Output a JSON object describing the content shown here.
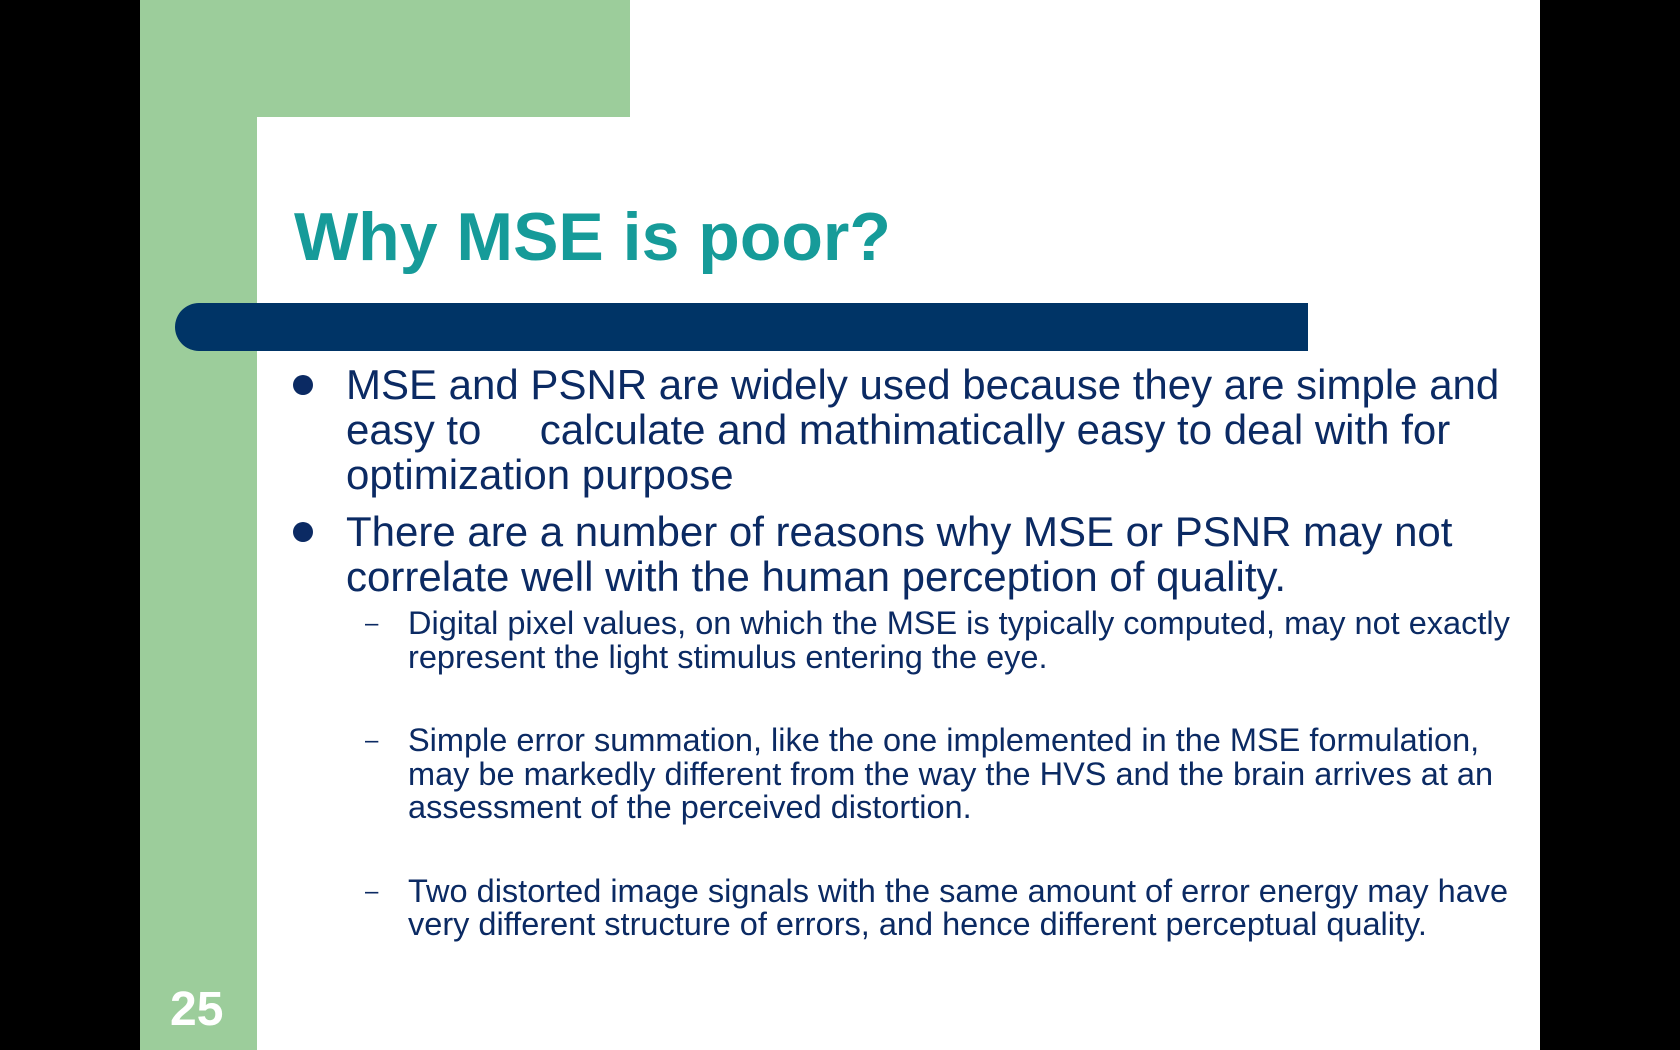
{
  "slide": {
    "title": "Why MSE is poor?",
    "number": "25",
    "colors": {
      "background": "#ffffff",
      "accent_green": "#9ccd9b",
      "title": "#169b99",
      "bar": "#003466",
      "body_text": "#0b2a63"
    },
    "bullets": [
      {
        "text": "MSE and PSNR are widely used because they are simple and easy to     calculate and mathimatically easy to deal with for optimization purpose",
        "subitems": []
      },
      {
        "text": "There are a number of reasons why MSE or PSNR may not correlate well with the human perception of quality.",
        "subitems": [
          "Digital pixel values, on which the MSE is typically computed, may not exactly represent the light stimulus entering the eye.",
          "Simple error summation, like the one implemented in the MSE formulation, may be markedly different from the way the HVS and the brain arrives at an assessment of the perceived distortion.",
          "Two distorted image signals with the same amount of error energy may have very different structure of errors, and hence different perceptual quality."
        ]
      }
    ]
  }
}
